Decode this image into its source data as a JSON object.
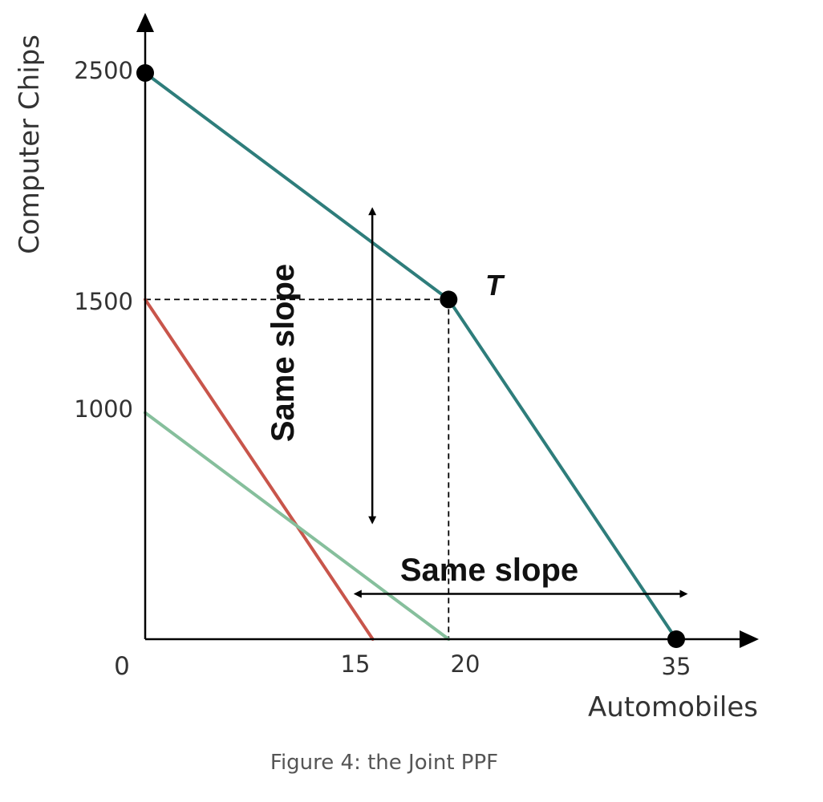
{
  "caption": "Figure 4: the Joint PPF",
  "chart_data": {
    "type": "line",
    "title": "",
    "xlabel": "Automobiles",
    "ylabel": "Computer Chips",
    "xlim": [
      0,
      35
    ],
    "ylim": [
      0,
      2500
    ],
    "origin_label": "0",
    "x_ticks": [
      15,
      20,
      35
    ],
    "y_ticks": [
      1000,
      1500,
      2500
    ],
    "grid": false,
    "series": [
      {
        "color": "#2e7d7b",
        "points": [
          [
            0,
            2500
          ],
          [
            20,
            1500
          ],
          [
            35,
            0
          ]
        ]
      },
      {
        "color": "#c8554b",
        "points": [
          [
            0,
            1500
          ],
          [
            15,
            0
          ]
        ]
      },
      {
        "color": "#86bf9c",
        "points": [
          [
            0,
            1000
          ],
          [
            20,
            0
          ]
        ]
      }
    ],
    "markers": [
      {
        "x": 0,
        "y": 2500,
        "label": ""
      },
      {
        "x": 20,
        "y": 1500,
        "label": "T"
      },
      {
        "x": 35,
        "y": 0,
        "label": ""
      }
    ],
    "guides": [
      {
        "from": [
          0,
          1500
        ],
        "to": [
          20,
          1500
        ]
      },
      {
        "from": [
          20,
          1500
        ],
        "to": [
          20,
          0
        ]
      }
    ],
    "annotations": [
      {
        "text": "Same slope",
        "orientation": "vertical",
        "arrow": [
          [
            14.97,
            1890
          ],
          [
            14.97,
            525
          ]
        ]
      },
      {
        "text": "Same slope",
        "orientation": "horizontal",
        "arrow": [
          [
            14.0,
            200
          ],
          [
            35.5,
            200
          ]
        ]
      }
    ]
  }
}
